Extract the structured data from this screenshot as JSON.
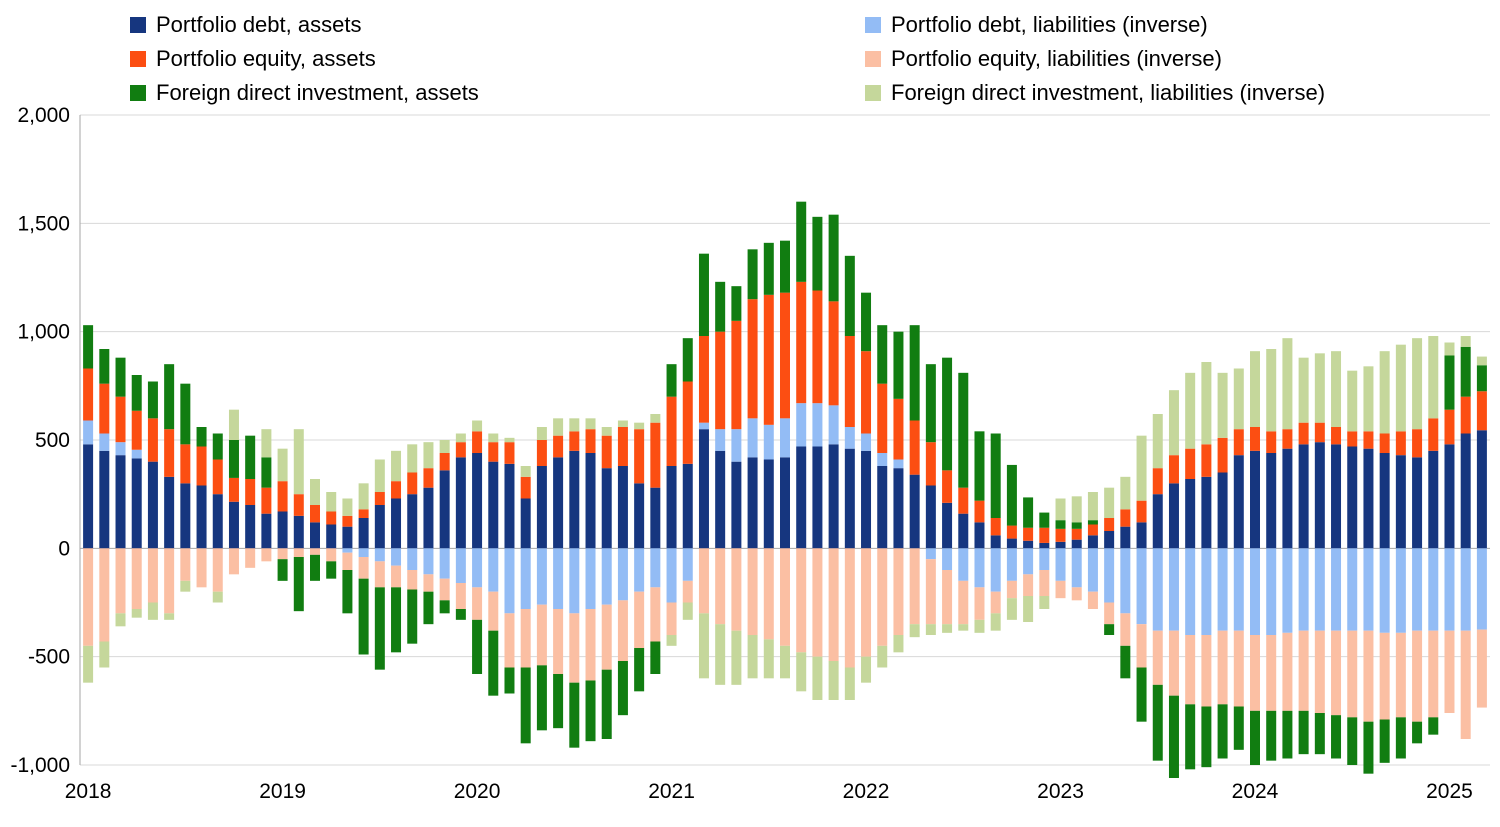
{
  "style": {
    "background": "#ffffff",
    "grid_color": "#d8d8d8",
    "axis_color": "#a6a6a6",
    "text_color": "#000000"
  },
  "chart_data": {
    "type": "bar",
    "stacked": true,
    "title": "",
    "xlabel": "",
    "ylabel": "",
    "categories": [
      "2018-01",
      "2018-02",
      "2018-03",
      "2018-04",
      "2018-05",
      "2018-06",
      "2018-07",
      "2018-08",
      "2018-09",
      "2018-10",
      "2018-11",
      "2018-12",
      "2019-01",
      "2019-02",
      "2019-03",
      "2019-04",
      "2019-05",
      "2019-06",
      "2019-07",
      "2019-08",
      "2019-09",
      "2019-10",
      "2019-11",
      "2019-12",
      "2020-01",
      "2020-02",
      "2020-03",
      "2020-04",
      "2020-05",
      "2020-06",
      "2020-07",
      "2020-08",
      "2020-09",
      "2020-10",
      "2020-11",
      "2020-12",
      "2021-01",
      "2021-02",
      "2021-03",
      "2021-04",
      "2021-05",
      "2021-06",
      "2021-07",
      "2021-08",
      "2021-09",
      "2021-10",
      "2021-11",
      "2021-12",
      "2022-01",
      "2022-02",
      "2022-03",
      "2022-04",
      "2022-05",
      "2022-06",
      "2022-07",
      "2022-08",
      "2022-09",
      "2022-10",
      "2022-11",
      "2022-12",
      "2023-01",
      "2023-02",
      "2023-03",
      "2023-04",
      "2023-05",
      "2023-06",
      "2023-07",
      "2023-08",
      "2023-09",
      "2023-10",
      "2023-11",
      "2023-12",
      "2024-01",
      "2024-02",
      "2024-03",
      "2024-04",
      "2024-05",
      "2024-06",
      "2024-07",
      "2024-08",
      "2024-09",
      "2024-10",
      "2024-11",
      "2024-12",
      "2025-01",
      "2025-02",
      "2025-03"
    ],
    "series": [
      {
        "key": "portfolio_debt_assets",
        "name": "Portfolio debt, assets",
        "color": "#16367f",
        "values": [
          480,
          450,
          430,
          415,
          400,
          330,
          300,
          290,
          250,
          215,
          200,
          160,
          170,
          150,
          120,
          110,
          100,
          140,
          200,
          230,
          250,
          280,
          360,
          420,
          440,
          400,
          390,
          230,
          380,
          420,
          450,
          440,
          370,
          380,
          300,
          280,
          380,
          390,
          550,
          450,
          400,
          420,
          410,
          420,
          470,
          470,
          480,
          460,
          450,
          380,
          370,
          340,
          290,
          210,
          160,
          120,
          60,
          45,
          35,
          25,
          30,
          40,
          60,
          80,
          100,
          120,
          250,
          300,
          320,
          330,
          350,
          430,
          450,
          440,
          460,
          480,
          490,
          480,
          470,
          460,
          440,
          430,
          420,
          450,
          480,
          530,
          545
        ]
      },
      {
        "key": "portfolio_debt_liabilities_inverse",
        "name": "Portfolio debt, liabilities (inverse)",
        "color": "#93bcf5",
        "values": [
          110,
          80,
          60,
          40,
          0,
          0,
          0,
          0,
          0,
          0,
          0,
          0,
          0,
          0,
          0,
          0,
          -20,
          -40,
          -60,
          -80,
          -100,
          -120,
          -140,
          -160,
          -180,
          -200,
          -300,
          -280,
          -260,
          -280,
          -300,
          -280,
          -260,
          -240,
          -200,
          -180,
          -250,
          -150,
          30,
          100,
          150,
          180,
          160,
          180,
          200,
          200,
          180,
          100,
          80,
          60,
          40,
          0,
          -50,
          -100,
          -150,
          -180,
          -200,
          -150,
          -120,
          -100,
          -150,
          -180,
          -200,
          -250,
          -300,
          -350,
          -380,
          -380,
          -400,
          -400,
          -380,
          -380,
          -400,
          -400,
          -390,
          -380,
          -380,
          -380,
          -380,
          -380,
          -390,
          -390,
          -380,
          -380,
          -380,
          -380,
          -375
        ]
      },
      {
        "key": "portfolio_equity_assets",
        "name": "Portfolio equity, assets",
        "color": "#fc4e12",
        "values": [
          240,
          230,
          210,
          180,
          200,
          220,
          180,
          180,
          160,
          110,
          120,
          120,
          140,
          100,
          80,
          60,
          50,
          40,
          60,
          80,
          100,
          90,
          80,
          70,
          100,
          90,
          100,
          100,
          120,
          100,
          90,
          110,
          150,
          180,
          250,
          300,
          320,
          380,
          400,
          450,
          500,
          550,
          600,
          580,
          560,
          520,
          480,
          420,
          380,
          320,
          280,
          250,
          200,
          150,
          120,
          100,
          80,
          60,
          60,
          70,
          60,
          50,
          50,
          60,
          80,
          100,
          120,
          130,
          140,
          150,
          160,
          120,
          110,
          100,
          90,
          100,
          90,
          80,
          70,
          80,
          90,
          110,
          130,
          150,
          160,
          170,
          180
        ]
      },
      {
        "key": "portfolio_equity_liabilities_inverse",
        "name": "Portfolio equity, liabilities (inverse)",
        "color": "#fbbfa3",
        "values": [
          -450,
          -430,
          -300,
          -280,
          -250,
          -300,
          -150,
          -180,
          -200,
          -120,
          -90,
          -60,
          -50,
          -40,
          -30,
          -60,
          -80,
          -100,
          -120,
          -100,
          -90,
          -80,
          -100,
          -120,
          -150,
          -180,
          -250,
          -270,
          -280,
          -300,
          -320,
          -330,
          -300,
          -280,
          -260,
          -250,
          -150,
          -100,
          -300,
          -350,
          -380,
          -400,
          -420,
          -450,
          -480,
          -500,
          -520,
          -550,
          -500,
          -450,
          -400,
          -350,
          -300,
          -250,
          -200,
          -150,
          -100,
          -80,
          -100,
          -120,
          -80,
          -60,
          -80,
          -100,
          -150,
          -200,
          -250,
          -300,
          -320,
          -330,
          -340,
          -350,
          -350,
          -350,
          -360,
          -370,
          -380,
          -390,
          -400,
          -420,
          -400,
          -390,
          -420,
          -400,
          -380,
          -500,
          -360
        ]
      },
      {
        "key": "fdi_assets",
        "name": "Foreign direct investment, assets",
        "color": "#117d11",
        "values": [
          200,
          160,
          180,
          165,
          170,
          300,
          280,
          90,
          120,
          175,
          200,
          140,
          -100,
          -250,
          -120,
          -80,
          -200,
          -350,
          -380,
          -300,
          -250,
          -150,
          -60,
          -50,
          -250,
          -300,
          -120,
          -350,
          -300,
          -250,
          -300,
          -280,
          -320,
          -250,
          -200,
          -150,
          150,
          200,
          380,
          230,
          160,
          230,
          240,
          240,
          370,
          340,
          400,
          370,
          270,
          270,
          310,
          440,
          360,
          520,
          530,
          320,
          390,
          280,
          140,
          70,
          40,
          30,
          20,
          -50,
          -150,
          -250,
          -350,
          -380,
          -300,
          -280,
          -250,
          -200,
          -250,
          -230,
          -220,
          -200,
          -190,
          -200,
          -220,
          -240,
          -200,
          -190,
          -100,
          -80,
          250,
          230,
          120
        ]
      },
      {
        "key": "fdi_liabilities_inverse",
        "name": "Foreign direct investment, liabilities (inverse)",
        "color": "#c5d79b",
        "values": [
          -170,
          -120,
          -60,
          -40,
          -80,
          -30,
          -50,
          0,
          -50,
          140,
          0,
          130,
          150,
          300,
          120,
          90,
          80,
          120,
          150,
          140,
          130,
          120,
          60,
          40,
          50,
          40,
          20,
          50,
          60,
          80,
          60,
          50,
          40,
          30,
          30,
          40,
          -50,
          -80,
          -300,
          -280,
          -250,
          -200,
          -180,
          -150,
          -180,
          -200,
          -180,
          -150,
          -120,
          -100,
          -80,
          -60,
          -50,
          -40,
          -30,
          -60,
          -80,
          -100,
          -120,
          -60,
          100,
          120,
          130,
          140,
          150,
          300,
          250,
          300,
          350,
          380,
          300,
          280,
          350,
          380,
          420,
          300,
          320,
          350,
          280,
          300,
          380,
          400,
          420,
          380,
          60,
          50,
          40
        ]
      }
    ],
    "y_axis": {
      "min": -1000,
      "max": 2000,
      "tick_step": 500,
      "tick_values": [
        2000,
        1500,
        1000,
        500,
        0,
        -500,
        -1000
      ],
      "tick_labels": [
        "2,000",
        "1,500",
        "1,000",
        "500",
        "0",
        "-500",
        "-1,000"
      ]
    },
    "x_axis": {
      "tick_labels": [
        "2018",
        "2019",
        "2020",
        "2021",
        "2022",
        "2023",
        "2024",
        "2025"
      ],
      "tick_month_indices": [
        0,
        12,
        24,
        36,
        48,
        60,
        72,
        84
      ]
    },
    "legend": {
      "position": "top",
      "columns": [
        [
          0,
          2,
          4
        ],
        [
          1,
          3,
          5
        ]
      ]
    },
    "grid": true
  }
}
